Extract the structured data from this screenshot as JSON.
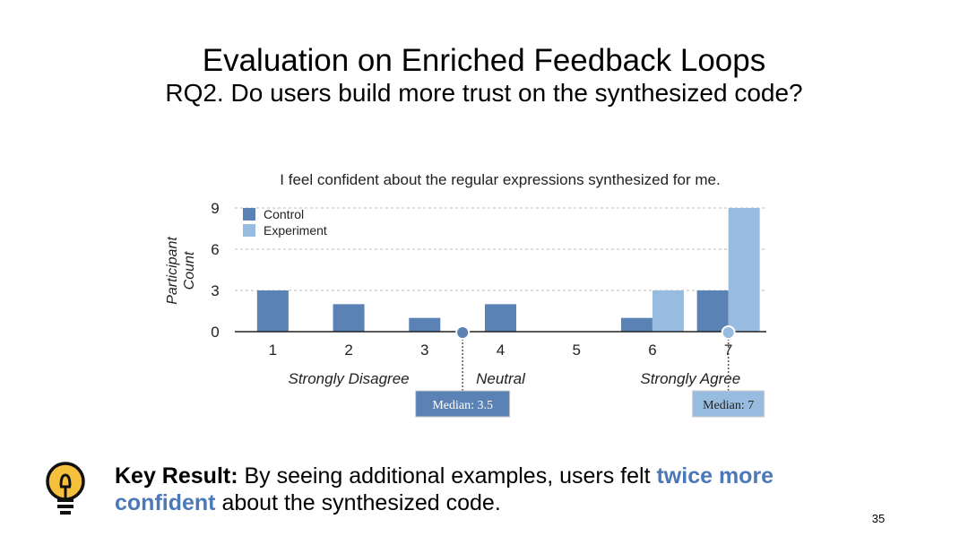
{
  "slide": {
    "title": "Evaluation on Enriched Feedback Loops",
    "subtitle": "RQ2. Do users build more trust on the synthesized code?",
    "page_number": "35"
  },
  "key_result": {
    "label": "Key Result:",
    "text_before": "By seeing additional examples, users felt",
    "emphasis": "twice more confident",
    "text_after": "about the synthesized code.",
    "icon": "lightbulb-icon"
  },
  "colors": {
    "control": "#5b82b5",
    "experiment": "#98bcdf",
    "accent": "#4a78b8",
    "median_control_bg": "#5b82b5",
    "median_experiment_bg": "#98bcdf",
    "icon_fill": "#f5c03c"
  },
  "chart_data": {
    "type": "bar",
    "title": "I feel confident about the regular expressions synthesized for me.",
    "ylabel": "Participant Count",
    "xlabel": "",
    "categories": [
      "1",
      "2",
      "3",
      "4",
      "5",
      "6",
      "7"
    ],
    "series": [
      {
        "name": "Control",
        "values": [
          3,
          2,
          1,
          2,
          0,
          1,
          3
        ]
      },
      {
        "name": "Experiment",
        "values": [
          0,
          0,
          0,
          0,
          0,
          3,
          9
        ]
      }
    ],
    "ylim": [
      0,
      9
    ],
    "yticks": [
      0,
      3,
      6,
      9
    ],
    "grid": true,
    "legend_position": "top-left",
    "scale_labels": [
      {
        "text": "Strongly Disagree",
        "at": 2
      },
      {
        "text": "Neutral",
        "at": 4
      },
      {
        "text": "Strongly Agree",
        "at": 6.5
      }
    ],
    "medians": [
      {
        "series": "Control",
        "value": 3.5,
        "label": "Median: 3.5"
      },
      {
        "series": "Experiment",
        "value": 7,
        "label": "Median: 7"
      }
    ]
  }
}
